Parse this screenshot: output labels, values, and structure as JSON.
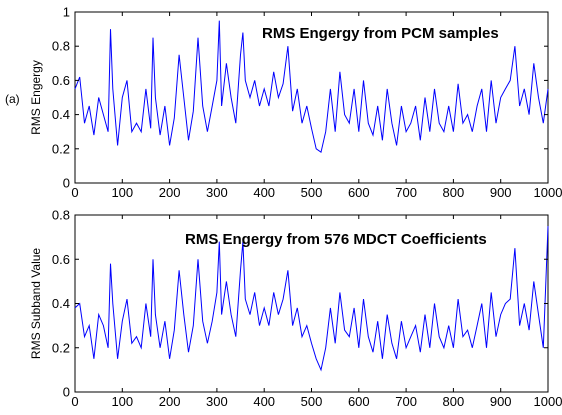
{
  "chart_data": [
    {
      "type": "line",
      "panel_label": "(a)",
      "title": "RMS  Engergy from PCM samples",
      "xlabel": "",
      "ylabel": "RMS Engergy",
      "xlim": [
        0,
        1000
      ],
      "ylim": [
        0,
        1
      ],
      "xticks": [
        "0",
        "100",
        "200",
        "300",
        "400",
        "500",
        "600",
        "700",
        "800",
        "900",
        "1000"
      ],
      "yticks": [
        "0",
        "0.2",
        "0.4",
        "0.6",
        "0.8",
        "1"
      ],
      "grid": false,
      "series": [
        {
          "color": "#0000ff",
          "x": [
            0,
            10,
            20,
            30,
            40,
            50,
            60,
            70,
            75,
            80,
            90,
            100,
            110,
            120,
            130,
            140,
            150,
            160,
            165,
            170,
            180,
            190,
            200,
            210,
            220,
            230,
            240,
            250,
            260,
            270,
            280,
            290,
            300,
            305,
            310,
            320,
            330,
            340,
            350,
            355,
            360,
            370,
            380,
            390,
            400,
            410,
            420,
            430,
            440,
            450,
            460,
            470,
            480,
            490,
            500,
            510,
            520,
            530,
            540,
            550,
            560,
            570,
            580,
            590,
            600,
            610,
            620,
            630,
            640,
            650,
            660,
            670,
            680,
            690,
            700,
            710,
            720,
            730,
            740,
            750,
            760,
            770,
            780,
            790,
            800,
            810,
            820,
            830,
            840,
            850,
            860,
            870,
            880,
            890,
            900,
            910,
            920,
            930,
            940,
            950,
            960,
            970,
            980,
            990,
            1000
          ],
          "values": [
            0.55,
            0.62,
            0.35,
            0.45,
            0.28,
            0.5,
            0.4,
            0.3,
            0.9,
            0.55,
            0.22,
            0.5,
            0.6,
            0.3,
            0.35,
            0.3,
            0.55,
            0.32,
            0.85,
            0.5,
            0.28,
            0.45,
            0.22,
            0.38,
            0.75,
            0.5,
            0.25,
            0.42,
            0.85,
            0.45,
            0.3,
            0.45,
            0.6,
            0.95,
            0.45,
            0.7,
            0.5,
            0.35,
            0.75,
            0.88,
            0.6,
            0.5,
            0.6,
            0.45,
            0.55,
            0.45,
            0.65,
            0.5,
            0.58,
            0.8,
            0.42,
            0.55,
            0.35,
            0.45,
            0.32,
            0.2,
            0.18,
            0.3,
            0.55,
            0.3,
            0.65,
            0.4,
            0.35,
            0.55,
            0.3,
            0.6,
            0.35,
            0.28,
            0.45,
            0.25,
            0.55,
            0.35,
            0.22,
            0.45,
            0.3,
            0.35,
            0.45,
            0.25,
            0.5,
            0.3,
            0.55,
            0.35,
            0.3,
            0.45,
            0.3,
            0.58,
            0.35,
            0.4,
            0.3,
            0.45,
            0.55,
            0.3,
            0.6,
            0.35,
            0.5,
            0.55,
            0.6,
            0.8,
            0.45,
            0.55,
            0.4,
            0.7,
            0.5,
            0.35,
            0.55
          ]
        }
      ]
    },
    {
      "type": "line",
      "panel_label": "",
      "title": "RMS  Engergy from 576 MDCT Coefficients",
      "xlabel": "",
      "ylabel": "RMS Subband Value",
      "xlim": [
        0,
        1000
      ],
      "ylim": [
        0,
        0.8
      ],
      "xticks": [
        "0",
        "100",
        "200",
        "300",
        "400",
        "500",
        "600",
        "700",
        "800",
        "900",
        "1000"
      ],
      "yticks": [
        "0",
        "0.2",
        "0.4",
        "0.6",
        "0.8"
      ],
      "grid": false,
      "series": [
        {
          "color": "#0000ff",
          "x": [
            0,
            10,
            20,
            30,
            40,
            50,
            60,
            70,
            75,
            80,
            90,
            100,
            110,
            120,
            130,
            140,
            150,
            160,
            165,
            170,
            180,
            190,
            200,
            210,
            220,
            230,
            240,
            250,
            260,
            270,
            280,
            290,
            300,
            305,
            310,
            320,
            330,
            340,
            350,
            355,
            360,
            370,
            380,
            390,
            400,
            410,
            420,
            430,
            440,
            450,
            460,
            470,
            480,
            490,
            500,
            510,
            520,
            530,
            540,
            550,
            560,
            570,
            580,
            590,
            600,
            610,
            620,
            630,
            640,
            650,
            660,
            670,
            680,
            690,
            700,
            710,
            720,
            730,
            740,
            750,
            760,
            770,
            780,
            790,
            800,
            810,
            820,
            830,
            840,
            850,
            860,
            870,
            880,
            890,
            900,
            910,
            920,
            930,
            940,
            950,
            960,
            970,
            980,
            990,
            1000
          ],
          "values": [
            0.38,
            0.4,
            0.25,
            0.3,
            0.15,
            0.35,
            0.3,
            0.2,
            0.58,
            0.4,
            0.15,
            0.32,
            0.42,
            0.22,
            0.25,
            0.2,
            0.4,
            0.25,
            0.6,
            0.35,
            0.2,
            0.32,
            0.15,
            0.28,
            0.55,
            0.35,
            0.18,
            0.3,
            0.6,
            0.32,
            0.22,
            0.32,
            0.45,
            0.68,
            0.35,
            0.5,
            0.35,
            0.25,
            0.55,
            0.68,
            0.42,
            0.35,
            0.45,
            0.3,
            0.38,
            0.3,
            0.45,
            0.35,
            0.42,
            0.55,
            0.3,
            0.38,
            0.25,
            0.3,
            0.22,
            0.15,
            0.1,
            0.2,
            0.38,
            0.22,
            0.45,
            0.28,
            0.25,
            0.38,
            0.2,
            0.42,
            0.25,
            0.18,
            0.32,
            0.15,
            0.35,
            0.22,
            0.15,
            0.32,
            0.2,
            0.25,
            0.3,
            0.18,
            0.35,
            0.2,
            0.4,
            0.25,
            0.2,
            0.3,
            0.2,
            0.42,
            0.25,
            0.28,
            0.2,
            0.3,
            0.4,
            0.2,
            0.45,
            0.25,
            0.35,
            0.4,
            0.42,
            0.65,
            0.3,
            0.4,
            0.28,
            0.5,
            0.35,
            0.2,
            0.75
          ]
        }
      ]
    }
  ]
}
